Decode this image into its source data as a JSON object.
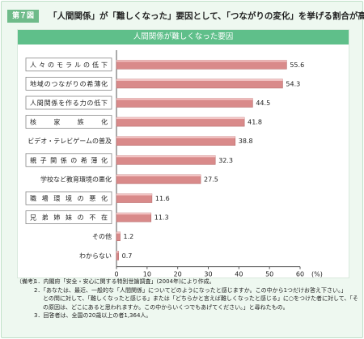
{
  "figure": {
    "label": "第７図",
    "title": "「人間関係」が「難しくなった」要因として、「つながりの変化」を挙げる割合が高い"
  },
  "chart_data": {
    "type": "bar",
    "orientation": "horizontal",
    "title": "人間関係が難しくなった要因",
    "categories": [
      "人々のモラルの低下",
      "地域のつながりの希薄化",
      "人間関係を作る力の低下",
      "核家族化",
      "ビデオ・テレビゲームの普及",
      "親子関係の希薄化",
      "学校など教育環境の悪化",
      "職場環境の悪化",
      "兄弟姉妹の不在",
      "その他",
      "わからない"
    ],
    "values": [
      55.6,
      54.3,
      44.5,
      41.8,
      38.8,
      32.3,
      27.5,
      11.6,
      11.3,
      1.2,
      0.7
    ],
    "boxed": [
      true,
      true,
      true,
      true,
      false,
      true,
      false,
      true,
      true,
      false,
      false
    ],
    "value_labels": [
      "55.6",
      "54.3",
      "44.5",
      "41.8",
      "38.8",
      "32.3",
      "27.5",
      "11.6",
      "11.3",
      "1.2",
      "0.7"
    ],
    "xlim": [
      0,
      60
    ],
    "xticks": [
      "0",
      "10",
      "20",
      "30",
      "40",
      "50",
      "60"
    ],
    "x_unit": "(%)",
    "grid": false,
    "bar_color": "#d98a8a"
  },
  "notes": {
    "head": "（備考）",
    "lines": [
      "1．内閣府「安全・安心に関する特別世論調査」(2004年)により作成。",
      "2．「あなたは、最近、一般的な「人間関係」についてどのようになったと感じますか。この中から1つだけお答え下さい。」",
      "との問に対して、「難しくなったと感じる」または「どちらかと言えば難しくなったと感じる」に○をつけた者に対して、「そ",
      "の原因は、どこにあると思われますか。この中からいくつでもあげてください。」と尋ねたもの。",
      "3．回答者は、全国の20歳以上の者1,364人。"
    ]
  }
}
